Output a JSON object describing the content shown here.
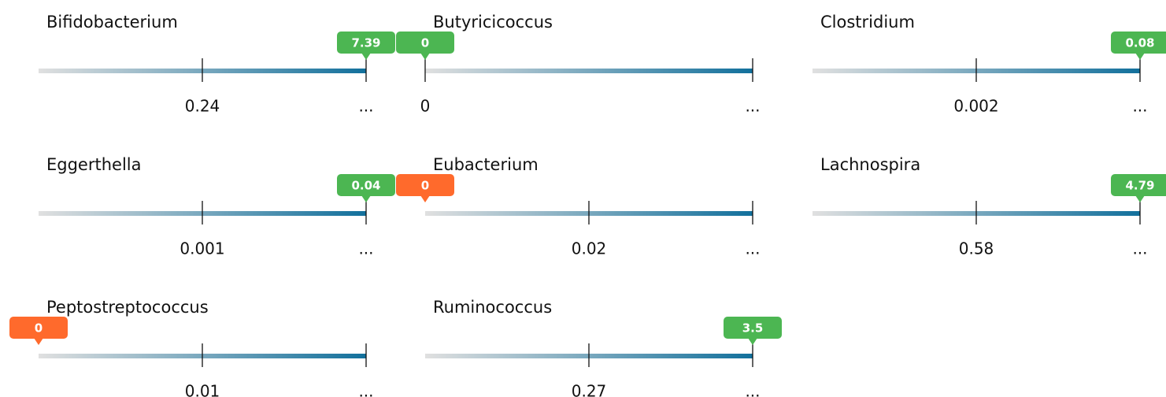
{
  "items": [
    {
      "name": "Bifidobacterium",
      "marker": {
        "label": "7.39",
        "color": "#4cb652"
      },
      "ticks": [
        "0.24",
        "..."
      ]
    },
    {
      "name": "Butyricicoccus",
      "marker": {
        "label": "0",
        "color": "#4cb652"
      },
      "ticks": [
        "0",
        "..."
      ]
    },
    {
      "name": "Clostridium",
      "marker": {
        "label": "0.08",
        "color": "#4cb652"
      },
      "ticks": [
        "0.002",
        "..."
      ]
    },
    {
      "name": "Eggerthella",
      "marker": {
        "label": "0.04",
        "color": "#4cb652"
      },
      "ticks": [
        "0.001",
        "..."
      ]
    },
    {
      "name": "Eubacterium",
      "marker": {
        "label": "0",
        "color": "#ff6a2c"
      },
      "ticks": [
        "0.02",
        "..."
      ]
    },
    {
      "name": "Lachnospira",
      "marker": {
        "label": "4.79",
        "color": "#4cb652"
      },
      "ticks": [
        "0.58",
        "..."
      ]
    },
    {
      "name": "Peptostreptococcus",
      "marker": {
        "label": "0",
        "color": "#ff6a2c"
      },
      "ticks": [
        "0.01",
        "..."
      ]
    },
    {
      "name": "Ruminococcus",
      "marker": {
        "label": "3.5",
        "color": "#4cb652"
      },
      "ticks": [
        "0.27",
        "..."
      ]
    }
  ]
}
